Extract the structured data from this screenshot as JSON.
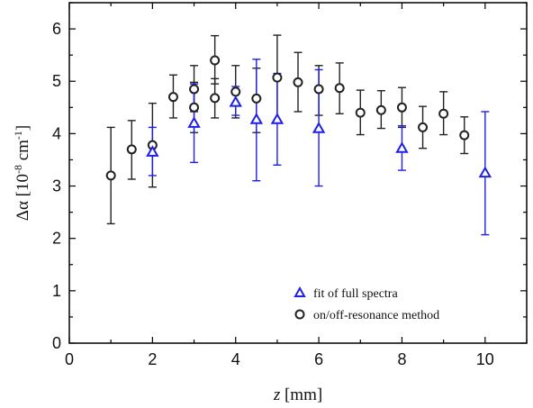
{
  "chart_data": {
    "type": "scatter",
    "xlabel_var": "z",
    "xlabel_unit": " [mm]",
    "ylabel_base": "Δα [10",
    "ylabel_exp1": "-8",
    "ylabel_mid": " cm",
    "ylabel_exp2": "-1",
    "ylabel_end": "]",
    "xlim": [
      0,
      11
    ],
    "ylim": [
      0,
      6.5
    ],
    "xticks": [
      "0",
      "2",
      "4",
      "6",
      "8",
      "10"
    ],
    "yticks": [
      "0",
      "1",
      "2",
      "3",
      "4",
      "5",
      "6"
    ],
    "grid": false,
    "legend_position": "bottom-right",
    "series": [
      {
        "name": "fit of full spectra",
        "marker": "triangle",
        "color": "#1f1fe6",
        "points": [
          {
            "x": 2,
            "y": 3.65,
            "lo": 3.2,
            "hi": 4.12
          },
          {
            "x": 3,
            "y": 4.2,
            "lo": 3.45,
            "hi": 4.95
          },
          {
            "x": 4,
            "y": 4.6,
            "lo": 4.35,
            "hi": 4.9
          },
          {
            "x": 4.5,
            "y": 4.27,
            "lo": 3.1,
            "hi": 5.42
          },
          {
            "x": 5,
            "y": 4.27,
            "lo": 3.4,
            "hi": 5.15
          },
          {
            "x": 6,
            "y": 4.1,
            "lo": 3.0,
            "hi": 5.22
          },
          {
            "x": 8,
            "y": 3.72,
            "lo": 3.3,
            "hi": 4.15
          },
          {
            "x": 10,
            "y": 3.25,
            "lo": 2.07,
            "hi": 4.42
          }
        ]
      },
      {
        "name": "on/off-resonance method",
        "marker": "circle",
        "color": "#222222",
        "points": [
          {
            "x": 1,
            "y": 3.2,
            "lo": 2.28,
            "hi": 4.12
          },
          {
            "x": 1.5,
            "y": 3.7,
            "lo": 3.13,
            "hi": 4.25
          },
          {
            "x": 2,
            "y": 3.78,
            "lo": 2.98,
            "hi": 4.58
          },
          {
            "x": 2.5,
            "y": 4.7,
            "lo": 4.3,
            "hi": 5.12
          },
          {
            "x": 3,
            "y": 4.85,
            "lo": 4.42,
            "hi": 5.3
          },
          {
            "x": 3,
            "y": 4.5,
            "lo": 4.02,
            "hi": 4.98
          },
          {
            "x": 3.5,
            "y": 5.4,
            "lo": 4.95,
            "hi": 5.87
          },
          {
            "x": 3.5,
            "y": 4.68,
            "lo": 4.3,
            "hi": 5.05
          },
          {
            "x": 4,
            "y": 4.8,
            "lo": 4.3,
            "hi": 5.3
          },
          {
            "x": 4.5,
            "y": 4.67,
            "lo": 4.02,
            "hi": 5.25
          },
          {
            "x": 5,
            "y": 5.07,
            "lo": 4.25,
            "hi": 5.88
          },
          {
            "x": 5.5,
            "y": 4.98,
            "lo": 4.42,
            "hi": 5.55
          },
          {
            "x": 6,
            "y": 4.85,
            "lo": 4.35,
            "hi": 5.3
          },
          {
            "x": 6.5,
            "y": 4.87,
            "lo": 4.38,
            "hi": 5.35
          },
          {
            "x": 7,
            "y": 4.4,
            "lo": 3.98,
            "hi": 4.83
          },
          {
            "x": 7.5,
            "y": 4.45,
            "lo": 4.1,
            "hi": 4.82
          },
          {
            "x": 8,
            "y": 4.5,
            "lo": 4.12,
            "hi": 4.88
          },
          {
            "x": 8.5,
            "y": 4.12,
            "lo": 3.72,
            "hi": 4.52
          },
          {
            "x": 9,
            "y": 4.38,
            "lo": 3.98,
            "hi": 4.8
          },
          {
            "x": 9.5,
            "y": 3.97,
            "lo": 3.62,
            "hi": 4.32
          }
        ]
      }
    ]
  }
}
